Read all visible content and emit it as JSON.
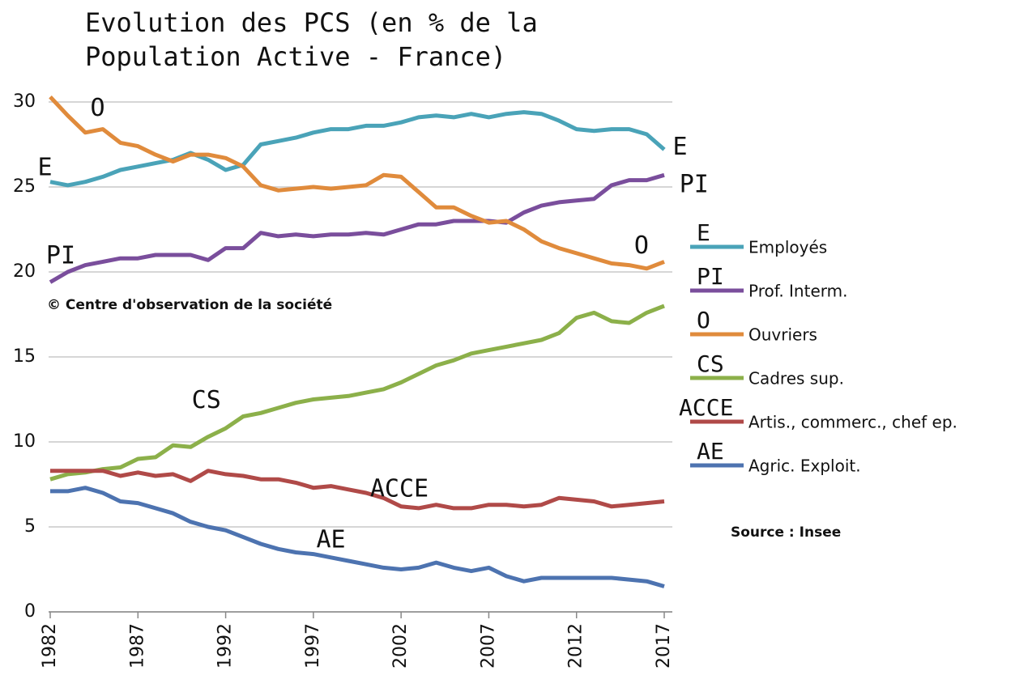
{
  "chart_data": {
    "type": "line",
    "title": [
      "Evolution des PCS (en % de la",
      "Population Active - France)"
    ],
    "x": [
      1982,
      1983,
      1984,
      1985,
      1986,
      1987,
      1988,
      1989,
      1990,
      1991,
      1992,
      1993,
      1994,
      1995,
      1996,
      1997,
      1998,
      1999,
      2000,
      2001,
      2002,
      2003,
      2004,
      2005,
      2006,
      2007,
      2008,
      2009,
      2010,
      2011,
      2012,
      2013,
      2014,
      2015,
      2016,
      2017
    ],
    "xlim": [
      1982,
      2017
    ],
    "xticks": [
      1982,
      1987,
      1992,
      1997,
      2002,
      2007,
      2012,
      2017
    ],
    "ylim": [
      0,
      30
    ],
    "yticks": [
      0,
      5,
      10,
      15,
      20,
      25,
      30
    ],
    "grid": true,
    "legend": "right",
    "series": [
      {
        "name": "Employés",
        "abbr": "E",
        "color": "#4aa3b8",
        "values": [
          25.3,
          25.1,
          25.3,
          25.6,
          26.0,
          26.2,
          26.4,
          26.6,
          27.0,
          26.6,
          26.0,
          26.3,
          27.5,
          27.7,
          27.9,
          28.2,
          28.4,
          28.4,
          28.6,
          28.6,
          28.8,
          29.1,
          29.2,
          29.1,
          29.3,
          29.1,
          29.3,
          29.4,
          29.3,
          28.9,
          28.4,
          28.3,
          28.4,
          28.4,
          28.1,
          27.2
        ]
      },
      {
        "name": "Prof. Interm.",
        "abbr": "PI",
        "color": "#7a4e9c",
        "values": [
          19.4,
          20.0,
          20.4,
          20.6,
          20.8,
          20.8,
          21.0,
          21.0,
          21.0,
          20.7,
          21.4,
          21.4,
          22.3,
          22.1,
          22.2,
          22.1,
          22.2,
          22.2,
          22.3,
          22.2,
          22.5,
          22.8,
          22.8,
          23.0,
          23.0,
          23.0,
          22.9,
          23.5,
          23.9,
          24.1,
          24.2,
          24.3,
          25.1,
          25.4,
          25.4,
          25.7
        ]
      },
      {
        "name": "Ouvriers",
        "abbr": "O",
        "color": "#e08b3c",
        "values": [
          30.3,
          29.2,
          28.2,
          28.4,
          27.6,
          27.4,
          26.9,
          26.5,
          26.9,
          26.9,
          26.7,
          26.2,
          25.1,
          24.8,
          24.9,
          25.0,
          24.9,
          25.0,
          25.1,
          25.7,
          25.6,
          24.7,
          23.8,
          23.8,
          23.3,
          22.9,
          23.0,
          22.5,
          21.8,
          21.4,
          21.1,
          20.8,
          20.5,
          20.4,
          20.2,
          20.6
        ]
      },
      {
        "name": "Cadres sup.",
        "abbr": "CS",
        "color": "#8cb04a",
        "values": [
          7.8,
          8.1,
          8.2,
          8.4,
          8.5,
          9.0,
          9.1,
          9.8,
          9.7,
          10.3,
          10.8,
          11.5,
          11.7,
          12.0,
          12.3,
          12.5,
          12.6,
          12.7,
          12.9,
          13.1,
          13.5,
          14.0,
          14.5,
          14.8,
          15.2,
          15.4,
          15.6,
          15.8,
          16.0,
          16.4,
          17.3,
          17.6,
          17.1,
          17.0,
          17.6,
          18.0
        ]
      },
      {
        "name": "Artis., commerc., chef ep.",
        "abbr": "ACCE",
        "color": "#b04a48",
        "values": [
          8.3,
          8.3,
          8.3,
          8.3,
          8.0,
          8.2,
          8.0,
          8.1,
          7.7,
          8.3,
          8.1,
          8.0,
          7.8,
          7.8,
          7.6,
          7.3,
          7.4,
          7.2,
          7.0,
          6.7,
          6.2,
          6.1,
          6.3,
          6.1,
          6.1,
          6.3,
          6.3,
          6.2,
          6.3,
          6.7,
          6.6,
          6.5,
          6.2,
          6.3,
          6.4,
          6.5
        ]
      },
      {
        "name": "Agric. Exploit.",
        "abbr": "AE",
        "color": "#4d73b0",
        "values": [
          7.1,
          7.1,
          7.3,
          7.0,
          6.5,
          6.4,
          6.1,
          5.8,
          5.3,
          5.0,
          4.8,
          4.4,
          4.0,
          3.7,
          3.5,
          3.4,
          3.2,
          3.0,
          2.8,
          2.6,
          2.5,
          2.6,
          2.9,
          2.6,
          2.4,
          2.6,
          2.1,
          1.8,
          2.0,
          2.0,
          2.0,
          2.0,
          2.0,
          1.9,
          1.8,
          1.5
        ]
      }
    ],
    "annotations": [
      {
        "text": "O",
        "x": 1984.7,
        "y": 29.6
      },
      {
        "text": "E",
        "x": 1981.7,
        "y": 26.1
      },
      {
        "text": "E",
        "x": 2017.9,
        "y": 27.3
      },
      {
        "text": "PI",
        "x": 2018.7,
        "y": 25.1
      },
      {
        "text": "O",
        "x": 2015.7,
        "y": 21.5
      },
      {
        "text": "PI",
        "x": 1982.6,
        "y": 20.9
      },
      {
        "text": "CS",
        "x": 1990.9,
        "y": 12.4
      },
      {
        "text": "ACCE",
        "x": 2001.9,
        "y": 7.2
      },
      {
        "text": "AE",
        "x": 1998.0,
        "y": 4.2
      }
    ],
    "copyright": "© Centre d'observation de la société",
    "source": "Source : Insee"
  }
}
